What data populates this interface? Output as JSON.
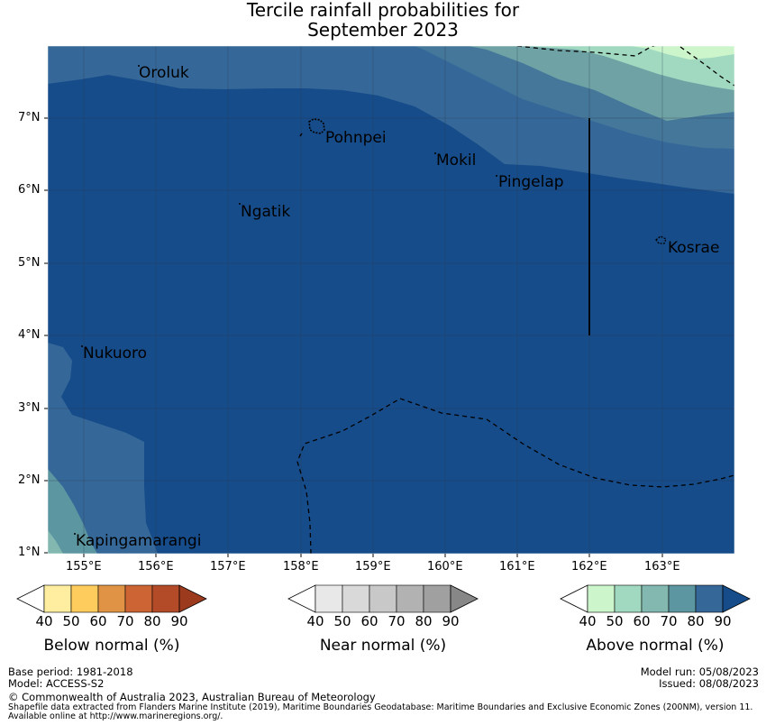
{
  "title_line1": "Tercile rainfall probabilities for",
  "title_line2": "September 2023",
  "map": {
    "lon_ticks": [
      "155°E",
      "156°E",
      "157°E",
      "158°E",
      "159°E",
      "160°E",
      "161°E",
      "162°E",
      "163°E"
    ],
    "lat_ticks": [
      "7°N",
      "6°N",
      "5°N",
      "4°N",
      "3°N",
      "2°N",
      "1°N"
    ],
    "places": [
      "Oroluk",
      "Pohnpei",
      "Mokil",
      "Pingelap",
      "Ngatik",
      "Kosrae",
      "Nukuoro",
      "Kapingamarangi"
    ]
  },
  "colorbars": [
    {
      "label": "Below normal (%)",
      "ticks": [
        "40",
        "50",
        "60",
        "70",
        "80",
        "90"
      ],
      "colors": [
        "#ffeda0",
        "#fecc5c",
        "#e09345",
        "#cc6433",
        "#b34a28",
        "#9c3a1e"
      ]
    },
    {
      "label": "Near normal (%)",
      "ticks": [
        "40",
        "50",
        "60",
        "70",
        "80",
        "90"
      ],
      "colors": [
        "#e8e8e8",
        "#d9d9d9",
        "#c8c8c8",
        "#b2b2b2",
        "#a0a0a0",
        "#878787"
      ]
    },
    {
      "label": "Above normal (%)",
      "ticks": [
        "40",
        "50",
        "60",
        "70",
        "80",
        "90"
      ],
      "colors": [
        "#ccf5cc",
        "#a1d9c0",
        "#82b8b0",
        "#5c96a0",
        "#356898",
        "#164c8a"
      ]
    }
  ],
  "footer": {
    "base_period": "Base period: 1981-2018",
    "model": "Model: ACCESS-S2",
    "model_run": "Model run: 05/08/2023",
    "issued": "Issued: 08/08/2023",
    "copyright": "© Commonwealth of Australia 2023, Australian Bureau of Meteorology",
    "shapefile": "Shapefile data extracted from Flanders Marine Institute (2019), Maritime Boundaries Geodatabase: Maritime Boundaries and Exclusive Economic Zones (200NM), version 11.",
    "available": "Available online at http://www.marineregions.org/."
  }
}
